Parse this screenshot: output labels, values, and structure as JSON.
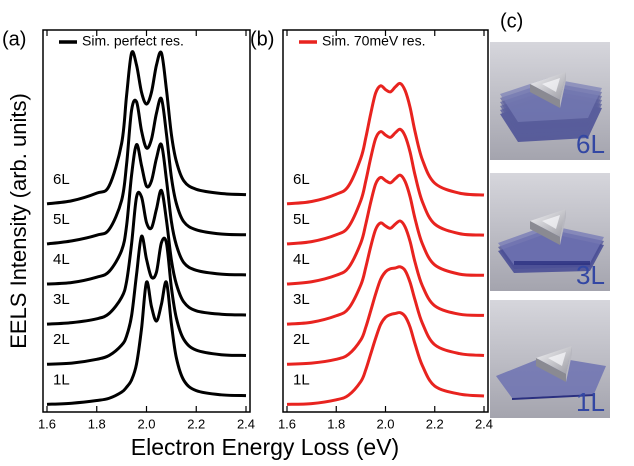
{
  "chart_data": [
    {
      "type": "line",
      "panel_label": "(a)",
      "legend": "Sim. perfect res.",
      "color": "#000000",
      "xlabel": "Electron Energy Loss (eV)",
      "ylabel": "EELS Intensity (arb. units)",
      "x": [
        1.6,
        1.7,
        1.8,
        1.85,
        1.9,
        1.92,
        1.94,
        1.96,
        1.98,
        2.0,
        2.02,
        2.04,
        2.06,
        2.08,
        2.1,
        2.12,
        2.15,
        2.2,
        2.3,
        2.4
      ],
      "xlim": [
        1.6,
        2.4
      ],
      "xticks": [
        1.6,
        1.8,
        {
          "value": 2.0,
          "label": "2.0"
        },
        2.2,
        2.4
      ],
      "ylim": [
        0,
        10
      ],
      "series": [
        {
          "name": "1L",
          "color": "#000000",
          "values": [
            0.2,
            0.23,
            0.3,
            0.36,
            0.52,
            0.65,
            0.84,
            1.26,
            2.18,
            3.4,
            2.76,
            2.38,
            2.82,
            3.4,
            2.31,
            1.42,
            0.83,
            0.56,
            0.45,
            0.43
          ]
        },
        {
          "name": "2L",
          "color": "#000000",
          "values": [
            1.25,
            1.28,
            1.38,
            1.48,
            1.75,
            1.99,
            2.52,
            3.6,
            4.6,
            4.0,
            3.53,
            3.66,
            4.43,
            4.43,
            3.26,
            2.46,
            1.9,
            1.62,
            1.5,
            1.48
          ]
        },
        {
          "name": "3L",
          "color": "#000000",
          "values": [
            2.3,
            2.34,
            2.44,
            2.58,
            3.0,
            3.42,
            4.4,
            5.63,
            5.63,
            4.96,
            4.82,
            5.31,
            5.8,
            5.03,
            3.98,
            3.35,
            2.88,
            2.65,
            2.56,
            2.54
          ]
        },
        {
          "name": "4L",
          "color": "#000000",
          "values": [
            3.35,
            3.39,
            3.53,
            3.68,
            4.23,
            4.88,
            6.2,
            7.0,
            6.45,
            5.91,
            6.05,
            6.64,
            7.0,
            6.09,
            4.99,
            4.37,
            3.91,
            3.71,
            3.61,
            3.59
          ]
        },
        {
          "name": "5L",
          "color": "#000000",
          "values": [
            4.4,
            4.48,
            4.63,
            4.78,
            5.54,
            6.49,
            7.9,
            8.12,
            7.36,
            6.91,
            7.14,
            7.82,
            8.2,
            7.29,
            6.15,
            5.46,
            4.98,
            4.77,
            4.66,
            4.64
          ]
        },
        {
          "name": "6L",
          "color": "#000000",
          "values": [
            5.45,
            5.53,
            5.73,
            5.92,
            7.03,
            8.29,
            9.4,
            9.08,
            8.37,
            8.06,
            8.37,
            9.08,
            9.4,
            8.45,
            7.27,
            6.56,
            6.05,
            5.83,
            5.72,
            5.69
          ]
        }
      ]
    },
    {
      "type": "line",
      "panel_label": "(b)",
      "legend": "Sim. 70meV res.",
      "color": "#e8231f",
      "x": [
        1.6,
        1.7,
        1.8,
        1.85,
        1.9,
        1.92,
        1.94,
        1.96,
        1.98,
        2.0,
        2.02,
        2.04,
        2.06,
        2.08,
        2.1,
        2.12,
        2.15,
        2.2,
        2.3,
        2.4
      ],
      "xlim": [
        1.6,
        2.4
      ],
      "xticks": [
        1.6,
        1.8,
        {
          "value": 2.0,
          "label": "2.0"
        },
        2.2,
        2.4
      ],
      "ylim": [
        0,
        10
      ],
      "series": [
        {
          "name": "1L",
          "color": "#e8231f",
          "values": [
            0.2,
            0.22,
            0.32,
            0.44,
            0.8,
            1.11,
            1.52,
            1.93,
            2.29,
            2.48,
            2.55,
            2.58,
            2.6,
            2.5,
            2.22,
            1.78,
            1.21,
            0.68,
            0.47,
            0.42
          ]
        },
        {
          "name": "2L",
          "color": "#e8231f",
          "values": [
            1.25,
            1.28,
            1.38,
            1.51,
            1.89,
            2.22,
            2.65,
            3.09,
            3.47,
            3.67,
            3.75,
            3.77,
            3.8,
            3.7,
            3.39,
            2.93,
            2.32,
            1.76,
            1.53,
            1.48
          ]
        },
        {
          "name": "3L",
          "color": "#e8231f",
          "values": [
            2.3,
            2.35,
            2.52,
            2.71,
            3.33,
            3.79,
            4.33,
            4.78,
            4.95,
            4.87,
            4.81,
            4.92,
            5.0,
            4.84,
            4.46,
            3.92,
            3.3,
            2.78,
            2.56,
            2.53
          ]
        },
        {
          "name": "4L",
          "color": "#e8231f",
          "values": [
            3.35,
            3.41,
            3.58,
            3.78,
            4.43,
            4.92,
            5.49,
            5.97,
            6.14,
            6.06,
            6.0,
            6.11,
            6.2,
            6.03,
            5.63,
            5.06,
            4.4,
            3.85,
            3.61,
            3.58
          ]
        },
        {
          "name": "5L",
          "color": "#e8231f",
          "values": [
            4.4,
            4.46,
            4.64,
            4.85,
            5.54,
            6.05,
            6.65,
            7.16,
            7.34,
            7.25,
            7.19,
            7.31,
            7.4,
            7.22,
            6.8,
            6.2,
            5.5,
            4.92,
            4.67,
            4.63
          ]
        },
        {
          "name": "6L",
          "color": "#e8231f",
          "values": [
            5.45,
            5.51,
            5.7,
            5.92,
            6.65,
            7.18,
            7.81,
            8.35,
            8.54,
            8.44,
            8.38,
            8.51,
            8.6,
            8.41,
            7.97,
            7.34,
            6.6,
            5.99,
            5.73,
            5.68
          ]
        }
      ]
    }
  ],
  "panel_c": {
    "label": "(c)",
    "images": [
      {
        "label": "6L"
      },
      {
        "label": "3L"
      },
      {
        "label": "1L"
      }
    ]
  }
}
